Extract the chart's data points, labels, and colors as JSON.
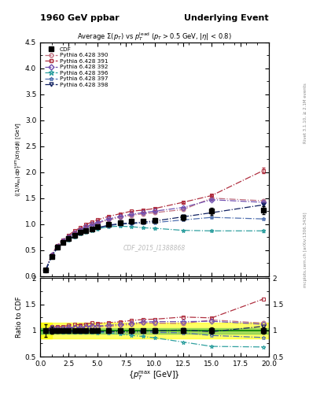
{
  "title_left": "1960 GeV ppbar",
  "title_right": "Underlying Event",
  "right_label": "mcplots.cern.ch [arXiv:1306.3436]",
  "right_label2": "Rivet 3.1.10, ≥ 2.1M events",
  "watermark": "CDF_2015_I1388868",
  "ylabel_main": "{(1/N_{events}) dp_T^{sum}/d\\eta, d\\phi} [GeV]",
  "ylabel_ratio": "Ratio to CDF",
  "xlabel": "{p_T^{max} [GeV]}",
  "xlim": [
    0,
    20
  ],
  "ylim_main": [
    0,
    4.5
  ],
  "ylim_ratio": [
    0.5,
    2.0
  ],
  "cdf_x": [
    0.5,
    1.0,
    1.5,
    2.0,
    2.5,
    3.0,
    3.5,
    4.0,
    4.5,
    5.0,
    6.0,
    7.0,
    8.0,
    9.0,
    10.0,
    12.5,
    15.0,
    19.5
  ],
  "cdf_y": [
    0.12,
    0.38,
    0.55,
    0.65,
    0.72,
    0.78,
    0.84,
    0.88,
    0.91,
    0.95,
    1.0,
    1.03,
    1.05,
    1.05,
    1.07,
    1.13,
    1.25,
    1.27
  ],
  "cdf_yerr": [
    0.015,
    0.025,
    0.025,
    0.025,
    0.025,
    0.025,
    0.025,
    0.025,
    0.025,
    0.025,
    0.03,
    0.035,
    0.035,
    0.035,
    0.04,
    0.055,
    0.07,
    0.08
  ],
  "py390_x": [
    0.5,
    1.0,
    1.5,
    2.0,
    2.5,
    3.0,
    3.5,
    4.0,
    4.5,
    5.0,
    6.0,
    7.0,
    8.0,
    9.0,
    10.0,
    12.5,
    15.0,
    19.5
  ],
  "py390_y": [
    0.12,
    0.4,
    0.57,
    0.68,
    0.76,
    0.83,
    0.89,
    0.94,
    0.98,
    1.02,
    1.08,
    1.13,
    1.17,
    1.2,
    1.22,
    1.28,
    1.5,
    1.45
  ],
  "py390_yerr": [
    0.002,
    0.005,
    0.005,
    0.005,
    0.005,
    0.005,
    0.005,
    0.005,
    0.005,
    0.005,
    0.006,
    0.007,
    0.007,
    0.008,
    0.008,
    0.01,
    0.015,
    0.02
  ],
  "py391_x": [
    0.5,
    1.0,
    1.5,
    2.0,
    2.5,
    3.0,
    3.5,
    4.0,
    4.5,
    5.0,
    6.0,
    7.0,
    8.0,
    9.0,
    10.0,
    12.5,
    15.0,
    19.5
  ],
  "py391_y": [
    0.12,
    0.41,
    0.59,
    0.7,
    0.79,
    0.87,
    0.93,
    0.99,
    1.04,
    1.08,
    1.15,
    1.2,
    1.25,
    1.27,
    1.3,
    1.42,
    1.55,
    2.03
  ],
  "py391_yerr": [
    0.002,
    0.005,
    0.005,
    0.005,
    0.005,
    0.005,
    0.005,
    0.005,
    0.005,
    0.005,
    0.006,
    0.007,
    0.007,
    0.008,
    0.008,
    0.01,
    0.015,
    0.05
  ],
  "py392_x": [
    0.5,
    1.0,
    1.5,
    2.0,
    2.5,
    3.0,
    3.5,
    4.0,
    4.5,
    5.0,
    6.0,
    7.0,
    8.0,
    9.0,
    10.0,
    12.5,
    15.0,
    19.5
  ],
  "py392_y": [
    0.12,
    0.4,
    0.57,
    0.68,
    0.76,
    0.83,
    0.89,
    0.95,
    0.99,
    1.03,
    1.1,
    1.15,
    1.19,
    1.22,
    1.25,
    1.32,
    1.47,
    1.42
  ],
  "py392_yerr": [
    0.002,
    0.005,
    0.005,
    0.005,
    0.005,
    0.005,
    0.005,
    0.005,
    0.005,
    0.005,
    0.006,
    0.007,
    0.007,
    0.008,
    0.008,
    0.01,
    0.015,
    0.02
  ],
  "py396_x": [
    0.5,
    1.0,
    1.5,
    2.0,
    2.5,
    3.0,
    3.5,
    4.0,
    4.5,
    5.0,
    6.0,
    7.0,
    8.0,
    9.0,
    10.0,
    12.5,
    15.0,
    19.5
  ],
  "py396_y": [
    0.12,
    0.38,
    0.54,
    0.63,
    0.7,
    0.76,
    0.81,
    0.85,
    0.88,
    0.91,
    0.95,
    0.96,
    0.95,
    0.93,
    0.92,
    0.88,
    0.87,
    0.87
  ],
  "py396_yerr": [
    0.002,
    0.005,
    0.005,
    0.005,
    0.005,
    0.005,
    0.005,
    0.005,
    0.005,
    0.005,
    0.006,
    0.007,
    0.007,
    0.008,
    0.008,
    0.01,
    0.015,
    0.025
  ],
  "py397_x": [
    0.5,
    1.0,
    1.5,
    2.0,
    2.5,
    3.0,
    3.5,
    4.0,
    4.5,
    5.0,
    6.0,
    7.0,
    8.0,
    9.0,
    10.0,
    12.5,
    15.0,
    19.5
  ],
  "py397_y": [
    0.12,
    0.38,
    0.54,
    0.64,
    0.71,
    0.77,
    0.83,
    0.87,
    0.9,
    0.93,
    0.97,
    1.0,
    1.01,
    1.02,
    1.03,
    1.08,
    1.13,
    1.1
  ],
  "py397_yerr": [
    0.002,
    0.005,
    0.005,
    0.005,
    0.005,
    0.005,
    0.005,
    0.005,
    0.005,
    0.005,
    0.006,
    0.007,
    0.007,
    0.008,
    0.008,
    0.01,
    0.015,
    0.02
  ],
  "py398_x": [
    0.5,
    1.0,
    1.5,
    2.0,
    2.5,
    3.0,
    3.5,
    4.0,
    4.5,
    5.0,
    6.0,
    7.0,
    8.0,
    9.0,
    10.0,
    12.5,
    15.0,
    19.5
  ],
  "py398_y": [
    0.12,
    0.38,
    0.54,
    0.64,
    0.71,
    0.77,
    0.83,
    0.87,
    0.9,
    0.93,
    0.98,
    1.01,
    1.02,
    1.04,
    1.06,
    1.14,
    1.22,
    1.37
  ],
  "py398_yerr": [
    0.002,
    0.005,
    0.005,
    0.005,
    0.005,
    0.005,
    0.005,
    0.005,
    0.005,
    0.005,
    0.006,
    0.007,
    0.007,
    0.008,
    0.008,
    0.01,
    0.015,
    0.02
  ],
  "color_390": "#c07080",
  "color_391": "#b03040",
  "color_392": "#7050b0",
  "color_396": "#30a0a0",
  "color_397": "#5070b0",
  "color_398": "#102060",
  "yellow_band_lo": 0.85,
  "yellow_band_hi": 1.15,
  "green_band_lo": 0.93,
  "green_band_hi": 1.05,
  "green_line": 1.0,
  "ratio_yticks": [
    0.5,
    1.0,
    1.5,
    2.0
  ],
  "main_yticks": [
    0,
    0.5,
    1.0,
    1.5,
    2.0,
    2.5,
    3.0,
    3.5,
    4.0,
    4.5
  ]
}
